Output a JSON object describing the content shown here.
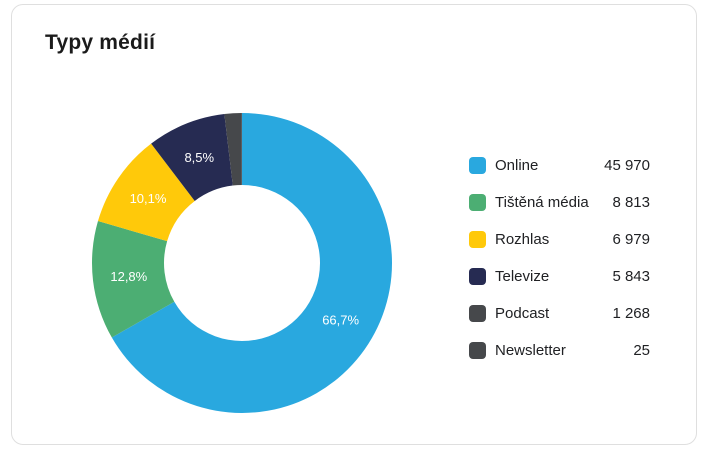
{
  "card": {
    "title": "Typy médií"
  },
  "colors": {
    "background": "#FFFFFF",
    "card_border": "#DFDFDF",
    "title_text": "#1B1B1B",
    "legend_text": "#202124",
    "percent_label_text": "#FFFFFF"
  },
  "chart_data": {
    "type": "pie",
    "subtype": "donut",
    "title": "Typy médií",
    "hole_ratio": 0.52,
    "start_angle_deg": 0,
    "direction": "clockwise",
    "legend_position": "right",
    "slices": [
      {
        "label": "Online",
        "value": 45970,
        "value_label": "45 970",
        "pct_label": "66,7%",
        "color": "#29A8DF"
      },
      {
        "label": "Tištěná média",
        "value": 8813,
        "value_label": "8 813",
        "pct_label": "12,8%",
        "color": "#4CAE73"
      },
      {
        "label": "Rozhlas",
        "value": 6979,
        "value_label": "6 979",
        "pct_label": "10,1%",
        "color": "#FFC90A"
      },
      {
        "label": "Televize",
        "value": 5843,
        "value_label": "5 843",
        "pct_label": "8,5%",
        "color": "#262B52"
      },
      {
        "label": "Podcast",
        "value": 1268,
        "value_label": "1 268",
        "pct_label": "",
        "color": "#46484B"
      },
      {
        "label": "Newsletter",
        "value": 25,
        "value_label": "25",
        "pct_label": "",
        "color": "#46484B"
      }
    ]
  }
}
